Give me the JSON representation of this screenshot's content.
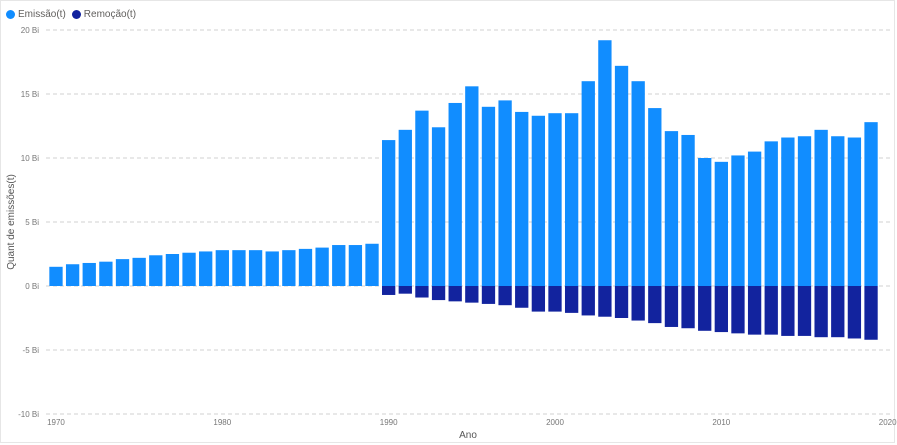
{
  "colors": {
    "emission": "#118DFF",
    "removal": "#12239E",
    "grid": "#d0d0d0"
  },
  "legend": [
    {
      "label": "Emissão(t)",
      "color": "#118DFF"
    },
    {
      "label": "Remoção(t)",
      "color": "#12239E"
    }
  ],
  "chart_data": {
    "type": "bar",
    "stacked": true,
    "title": "",
    "xlabel": "Ano",
    "ylabel": "Quant de emissões(t)",
    "ylim": [
      -10,
      20
    ],
    "y_unit": "Bi",
    "grid": true,
    "legend_position": "top-left",
    "x_ticks": [
      "1970",
      "1980",
      "1990",
      "2000",
      "2010",
      "2020"
    ],
    "y_ticks": [
      "-10 Bi",
      "-5 Bi",
      "0 Bi",
      "5 Bi",
      "10 Bi",
      "15 Bi",
      "20 Bi"
    ],
    "x": [
      1970,
      1971,
      1972,
      1973,
      1974,
      1975,
      1976,
      1977,
      1978,
      1979,
      1980,
      1981,
      1982,
      1983,
      1984,
      1985,
      1986,
      1987,
      1988,
      1989,
      1990,
      1991,
      1992,
      1993,
      1994,
      1995,
      1996,
      1997,
      1998,
      1999,
      2000,
      2001,
      2002,
      2003,
      2004,
      2005,
      2006,
      2007,
      2008,
      2009,
      2010,
      2011,
      2012,
      2013,
      2014,
      2015,
      2016,
      2017,
      2018,
      2019
    ],
    "series": [
      {
        "name": "Emissão(t)",
        "values": [
          1.5,
          1.7,
          1.8,
          1.9,
          2.1,
          2.2,
          2.4,
          2.5,
          2.6,
          2.7,
          2.8,
          2.8,
          2.8,
          2.7,
          2.8,
          2.9,
          3.0,
          3.2,
          3.2,
          3.3,
          11.4,
          12.2,
          13.7,
          12.4,
          14.3,
          15.6,
          14.0,
          14.5,
          13.6,
          13.3,
          13.5,
          13.5,
          16.0,
          19.2,
          17.2,
          16.0,
          13.9,
          12.1,
          11.8,
          10.0,
          9.7,
          10.2,
          10.5,
          11.3,
          11.6,
          11.7,
          12.2,
          11.7,
          11.6,
          12.8
        ]
      },
      {
        "name": "Remoção(t)",
        "values": [
          0,
          0,
          0,
          0,
          0,
          0,
          0,
          0,
          0,
          0,
          0,
          0,
          0,
          0,
          0,
          0,
          0,
          0,
          0,
          0,
          -0.7,
          -0.6,
          -0.9,
          -1.1,
          -1.2,
          -1.3,
          -1.4,
          -1.5,
          -1.7,
          -2.0,
          -2.0,
          -2.1,
          -2.3,
          -2.4,
          -2.5,
          -2.7,
          -2.9,
          -3.2,
          -3.3,
          -3.5,
          -3.6,
          -3.7,
          -3.8,
          -3.8,
          -3.9,
          -3.9,
          -4.0,
          -4.0,
          -4.1,
          -4.2
        ]
      }
    ]
  }
}
